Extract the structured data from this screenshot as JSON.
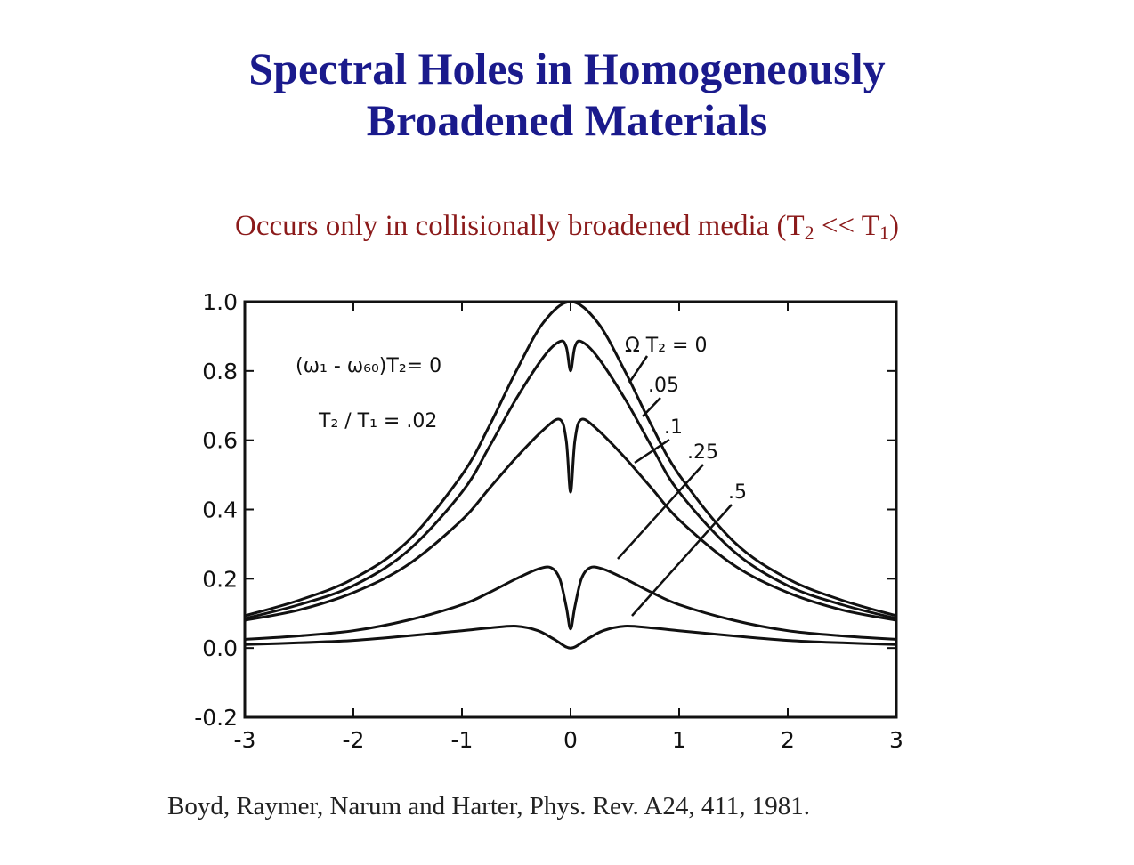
{
  "slide": {
    "title_line1": "Spectral Holes in Homogeneously",
    "title_line2": "Broadened Materials",
    "subtitle_prefix": "Occurs only in collisionally broadened media (T",
    "subtitle_sub1": "2",
    "subtitle_mid": " << T",
    "subtitle_sub2": "1",
    "subtitle_suffix": ")",
    "citation": "Boyd, Raymer, Narum and Harter, Phys. Rev. A24, 411, 1981.",
    "title_color": "#1a1a8c",
    "subtitle_color": "#8b1a1a"
  },
  "chart_data": {
    "type": "line",
    "xlim": [
      -3,
      3
    ],
    "ylim": [
      -0.2,
      1.0
    ],
    "xticks": [
      "-3",
      "-2",
      "-1",
      "0",
      "1",
      "2",
      "3"
    ],
    "yticks": [
      "1.0",
      "0.8",
      "0.6",
      "0.4",
      "0.2",
      "0.0",
      "-0.2"
    ],
    "grid": false,
    "annotations": {
      "param_line1": "(ω₁ - ω₆₀)T₂= 0",
      "param_line2": "T₂ / T₁  = .02",
      "series_label_0": "Ω T₂ = 0",
      "series_label_1": ".05",
      "series_label_2": ".1",
      "series_label_3": ".25",
      "series_label_4": ".5"
    },
    "series": [
      {
        "name": "0",
        "x": [
          -3,
          -2.5,
          -2,
          -1.5,
          -1,
          -0.75,
          -0.5,
          -0.25,
          0,
          0.25,
          0.5,
          0.75,
          1,
          1.5,
          2,
          2.5,
          3
        ],
        "y": [
          0.093,
          0.138,
          0.2,
          0.308,
          0.5,
          0.64,
          0.8,
          0.94,
          1.0,
          0.94,
          0.8,
          0.64,
          0.5,
          0.308,
          0.2,
          0.138,
          0.093
        ]
      },
      {
        "name": ".05",
        "x": [
          -3,
          -2.5,
          -2,
          -1.5,
          -1,
          -0.75,
          -0.5,
          -0.25,
          -0.1,
          -0.04,
          0,
          0.04,
          0.1,
          0.25,
          0.5,
          0.75,
          1,
          1.5,
          2,
          2.5,
          3
        ],
        "y": [
          0.085,
          0.125,
          0.18,
          0.28,
          0.45,
          0.58,
          0.72,
          0.84,
          0.885,
          0.87,
          0.8,
          0.87,
          0.885,
          0.84,
          0.72,
          0.58,
          0.45,
          0.28,
          0.18,
          0.125,
          0.085
        ]
      },
      {
        "name": ".1",
        "x": [
          -3,
          -2.5,
          -2,
          -1.5,
          -1,
          -0.75,
          -0.5,
          -0.25,
          -0.1,
          -0.04,
          0,
          0.04,
          0.1,
          0.25,
          0.5,
          0.75,
          1,
          1.5,
          2,
          2.5,
          3
        ],
        "y": [
          0.08,
          0.11,
          0.16,
          0.24,
          0.37,
          0.46,
          0.55,
          0.63,
          0.66,
          0.6,
          0.45,
          0.6,
          0.66,
          0.63,
          0.55,
          0.46,
          0.37,
          0.24,
          0.16,
          0.11,
          0.08
        ]
      },
      {
        "name": ".25",
        "x": [
          -3,
          -2.5,
          -2,
          -1.5,
          -1,
          -0.75,
          -0.5,
          -0.3,
          -0.18,
          -0.1,
          -0.04,
          0,
          0.04,
          0.1,
          0.18,
          0.3,
          0.5,
          0.75,
          1,
          1.5,
          2,
          2.5,
          3
        ],
        "y": [
          0.025,
          0.035,
          0.05,
          0.08,
          0.125,
          0.16,
          0.2,
          0.228,
          0.232,
          0.2,
          0.12,
          0.055,
          0.12,
          0.2,
          0.232,
          0.228,
          0.2,
          0.16,
          0.125,
          0.08,
          0.05,
          0.035,
          0.025
        ]
      },
      {
        "name": ".5",
        "x": [
          -3,
          -2.5,
          -2,
          -1.5,
          -1,
          -0.75,
          -0.5,
          -0.3,
          -0.15,
          0,
          0.15,
          0.3,
          0.5,
          0.75,
          1,
          1.5,
          2,
          2.5,
          3
        ],
        "y": [
          0.01,
          0.015,
          0.022,
          0.035,
          0.05,
          0.058,
          0.063,
          0.05,
          0.025,
          0.0,
          0.025,
          0.05,
          0.063,
          0.058,
          0.05,
          0.035,
          0.022,
          0.015,
          0.01
        ]
      }
    ]
  }
}
